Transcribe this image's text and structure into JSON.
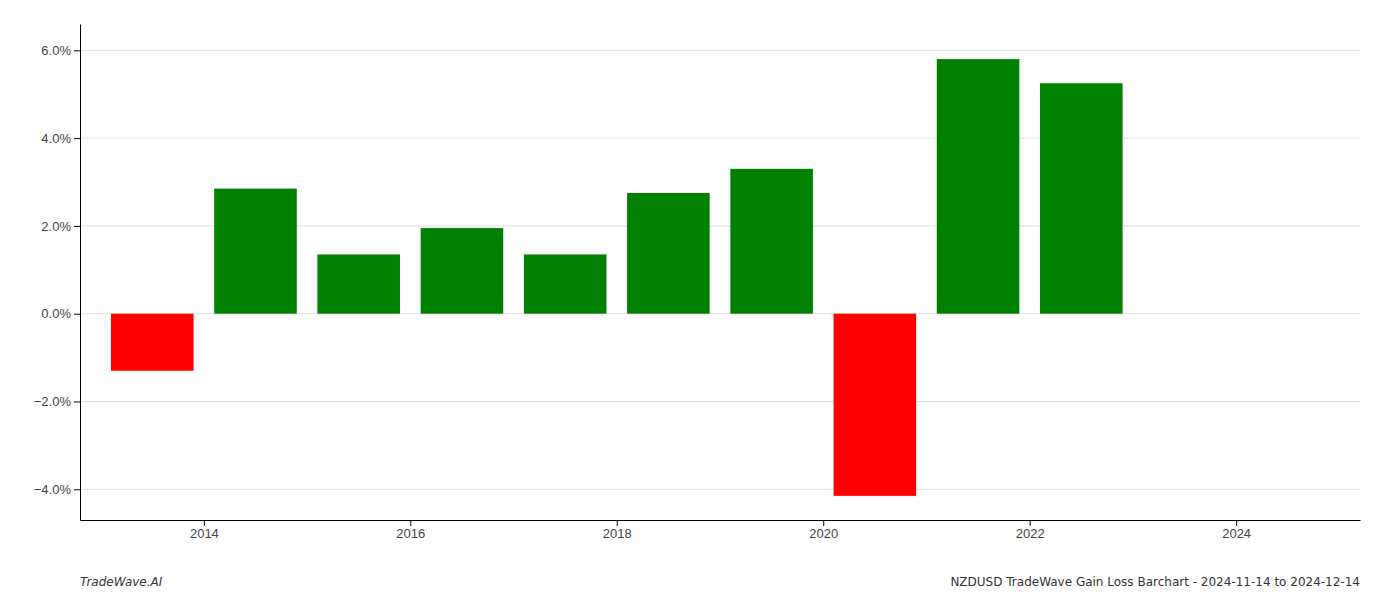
{
  "chart_data": {
    "type": "bar",
    "x": [
      2013.5,
      2014.5,
      2015.5,
      2016.5,
      2017.5,
      2018.5,
      2019.5,
      2020.5,
      2021.5,
      2022.5
    ],
    "values": [
      -1.3,
      2.85,
      1.35,
      1.95,
      1.35,
      2.75,
      3.3,
      -4.15,
      5.8,
      5.25
    ],
    "colors": [
      "#ff0000",
      "#008000",
      "#008000",
      "#008000",
      "#008000",
      "#008000",
      "#008000",
      "#ff0000",
      "#008000",
      "#008000"
    ],
    "xlim": [
      2012.8,
      2025.2
    ],
    "xticks": [
      2014,
      2016,
      2018,
      2020,
      2022,
      2024
    ],
    "ylim": [
      -4.7,
      6.6
    ],
    "yticks": [
      {
        "value": -4.0,
        "label": "−4.0%"
      },
      {
        "value": -2.0,
        "label": "−2.0%"
      },
      {
        "value": 0.0,
        "label": "0.0%"
      },
      {
        "value": 2.0,
        "label": "2.0%"
      },
      {
        "value": 4.0,
        "label": "4.0%"
      },
      {
        "value": 6.0,
        "label": "6.0%"
      }
    ],
    "grid": true,
    "annotations": [
      "TradeWave.AI",
      "NZDUSD TradeWave Gain Loss Barchart - 2024-11-14 to 2024-12-14"
    ]
  }
}
